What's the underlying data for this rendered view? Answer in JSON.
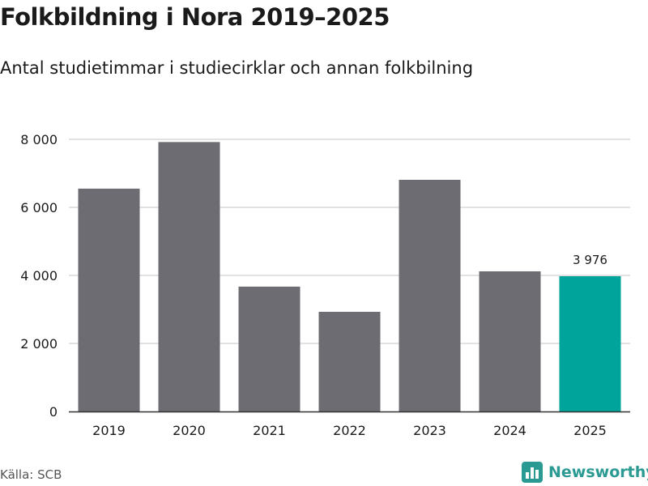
{
  "header": {
    "title": "Folkbildning i Nora 2019–2025",
    "subtitle": "Antal studietimmar i studiecirklar och annan folkbilning"
  },
  "footer": {
    "source": "Källa: SCB",
    "brand": "Newsworthy"
  },
  "colors": {
    "bar": "#6d6c73",
    "highlight": "#00a49a",
    "grid": "#d9d9d9",
    "axis": "#333333",
    "brand": "#2a9a92"
  },
  "chart_data": {
    "type": "bar",
    "categories": [
      "2019",
      "2020",
      "2021",
      "2022",
      "2023",
      "2024",
      "2025"
    ],
    "values": [
      6550,
      7920,
      3670,
      2930,
      6810,
      4120,
      3976
    ],
    "highlight_index": 6,
    "data_labels": [
      {
        "index": 6,
        "text": "3 976"
      }
    ],
    "yticks": [
      {
        "value": 0,
        "label": "0"
      },
      {
        "value": 2000,
        "label": "2 000"
      },
      {
        "value": 4000,
        "label": "4 000"
      },
      {
        "value": 6000,
        "label": "6 000"
      },
      {
        "value": 8000,
        "label": "8 000"
      }
    ],
    "ylim": [
      0,
      8000
    ],
    "grid": true,
    "legend": "none"
  }
}
